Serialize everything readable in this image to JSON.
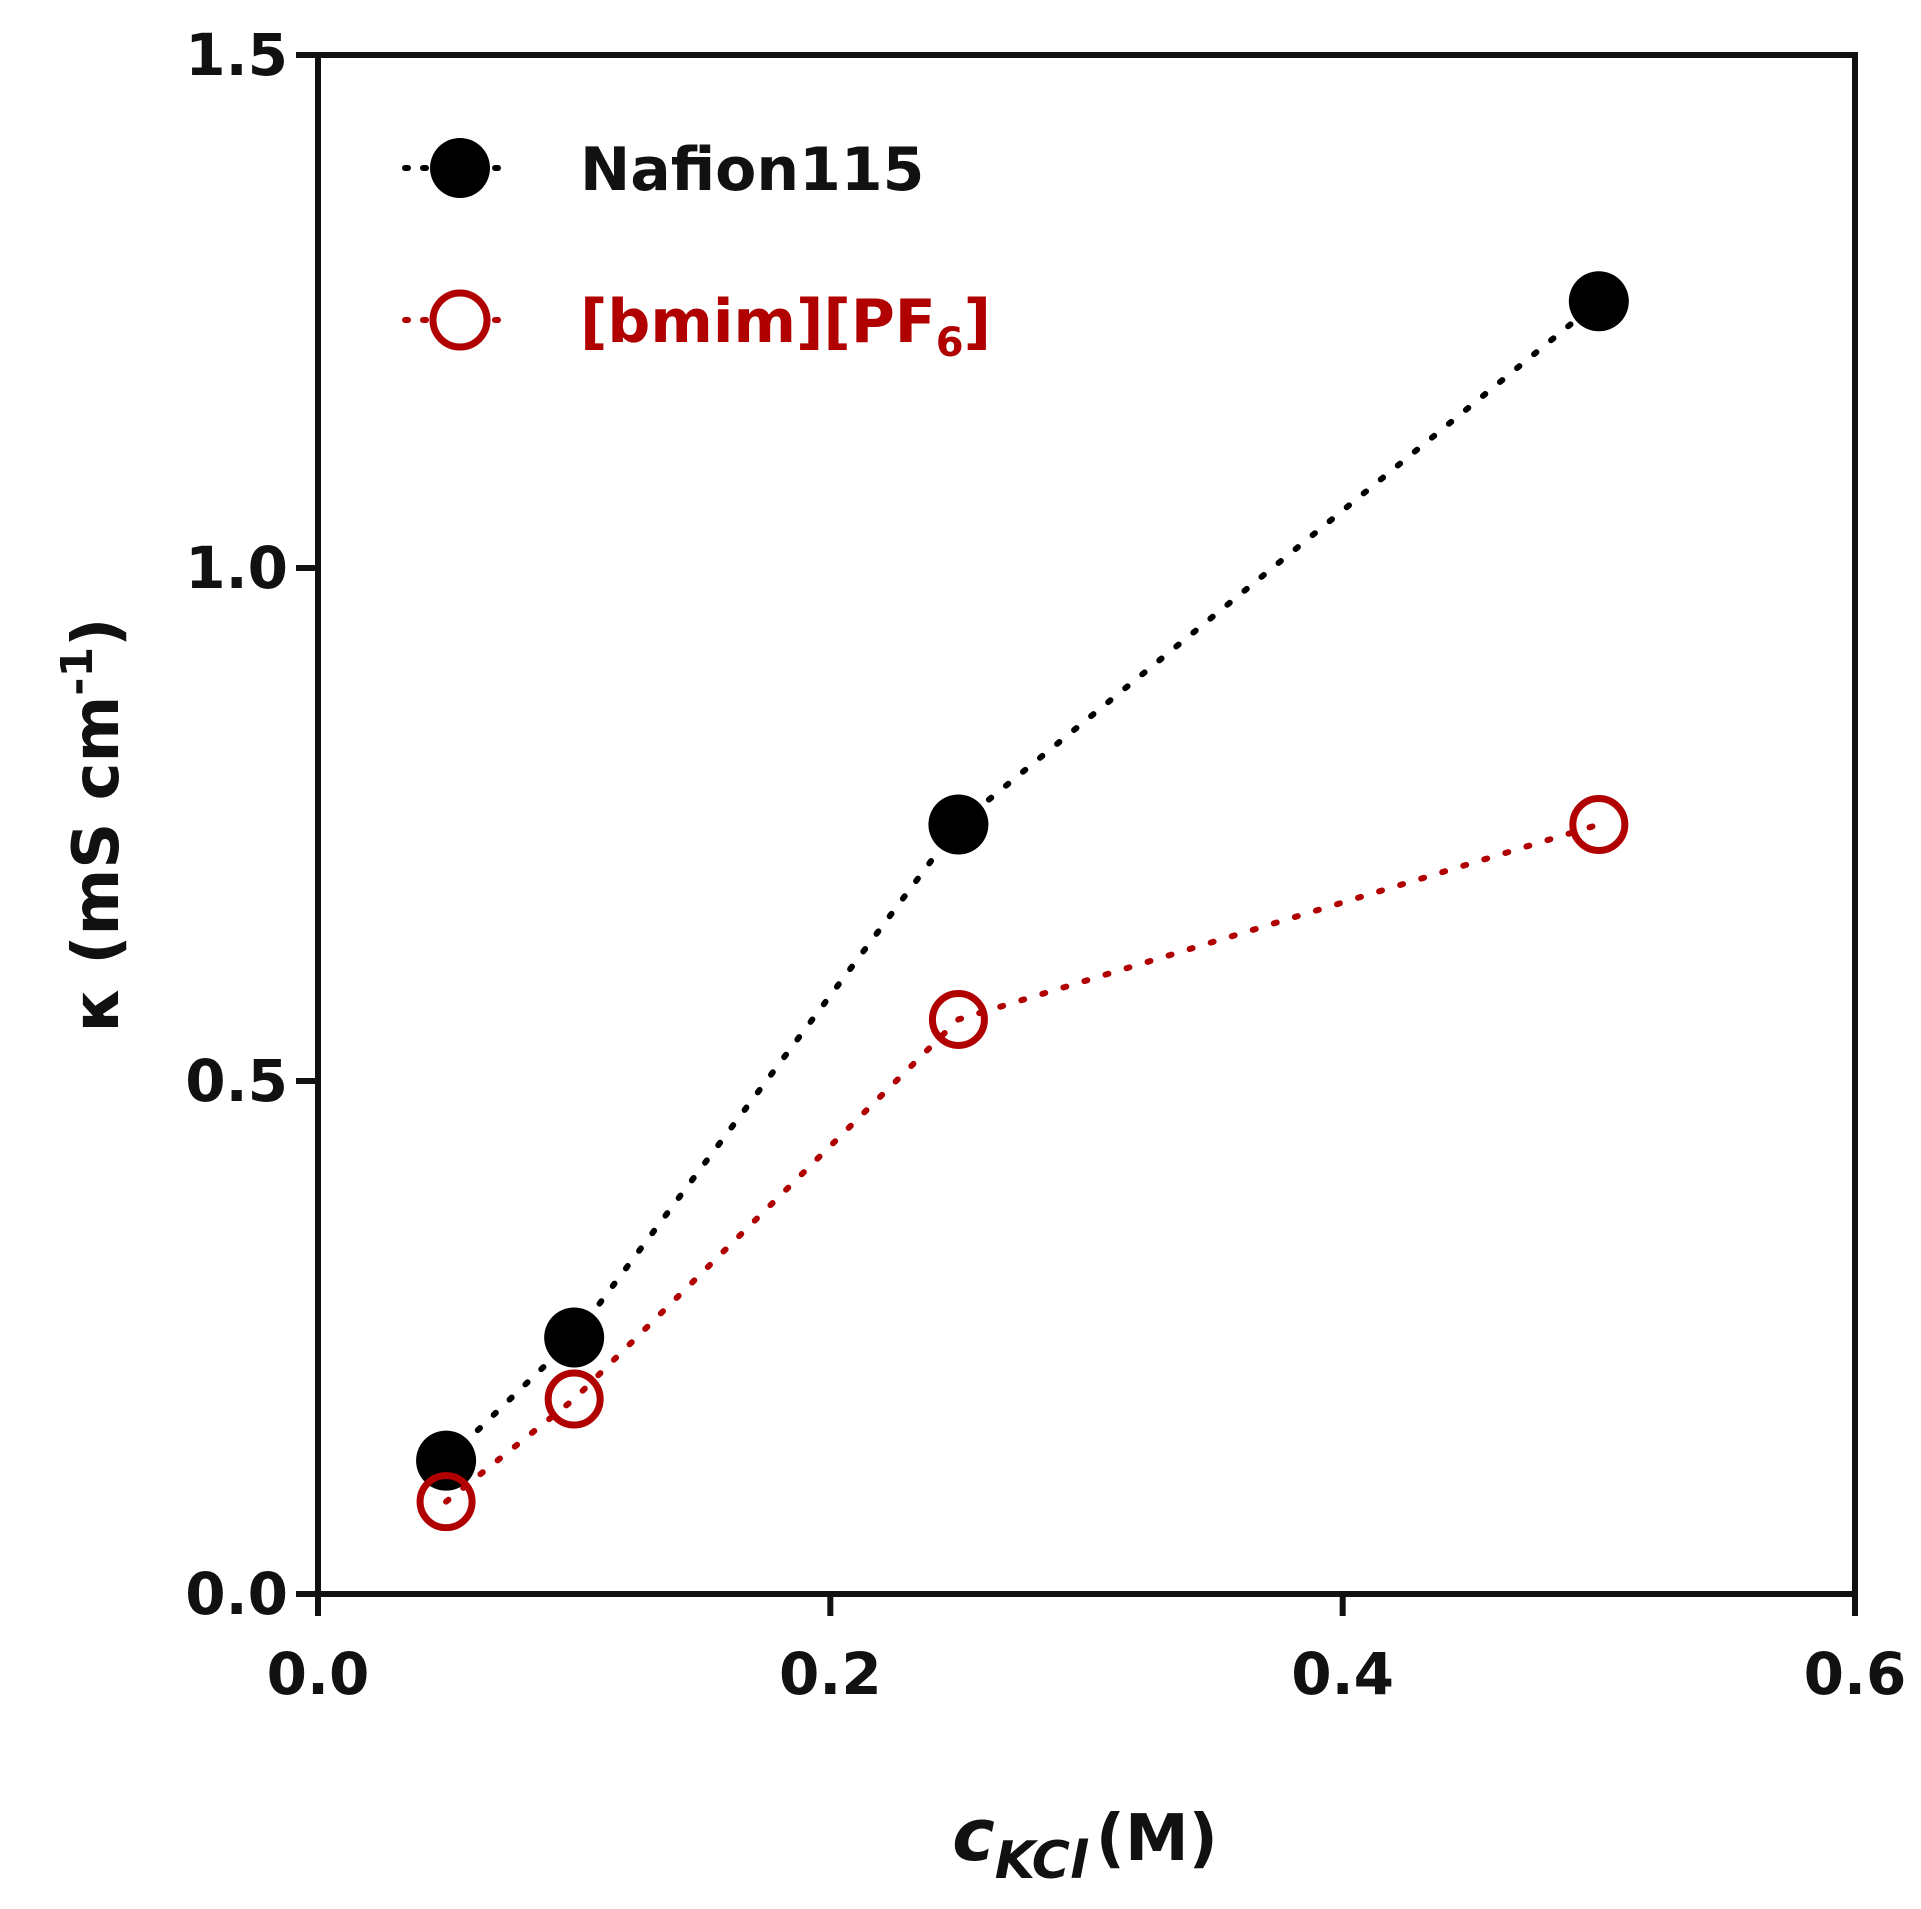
{
  "chart_data": {
    "type": "scatter",
    "title": "",
    "xlabel": {
      "symbol": "c",
      "subscript": "KCl",
      "unit": "(M)"
    },
    "ylabel": {
      "symbol": "κ",
      "unit": "(mS cm",
      "superscript": "-1",
      "close": ")"
    },
    "xlim": [
      0.0,
      0.6
    ],
    "ylim": [
      0.0,
      1.5
    ],
    "x_ticks": [
      "0.0",
      "0.2",
      "0.4",
      "0.6"
    ],
    "y_ticks": [
      "0.0",
      "0.5",
      "1.0",
      "1.5"
    ],
    "x_tick_values": [
      0.0,
      0.2,
      0.4,
      0.6
    ],
    "y_tick_values": [
      0.0,
      0.5,
      1.0,
      1.5
    ],
    "grid": false,
    "legend_position": "top-left",
    "series": [
      {
        "name": "Nafion115",
        "name_parts": {
          "main": "Nafion115",
          "subscript": "",
          "close": ""
        },
        "color": "#000000",
        "marker": "filled-circle",
        "line": "dotted",
        "x": [
          0.05,
          0.1,
          0.25,
          0.5
        ],
        "y": [
          0.13,
          0.25,
          0.75,
          1.26
        ]
      },
      {
        "name": "[bmim][PF6]",
        "name_parts": {
          "main": "[bmim][PF",
          "subscript": "6",
          "close": "]"
        },
        "color": "#b00000",
        "marker": "open-circle",
        "line": "dotted",
        "x": [
          0.05,
          0.1,
          0.25,
          0.5
        ],
        "y": [
          0.09,
          0.19,
          0.56,
          0.75
        ]
      }
    ]
  }
}
